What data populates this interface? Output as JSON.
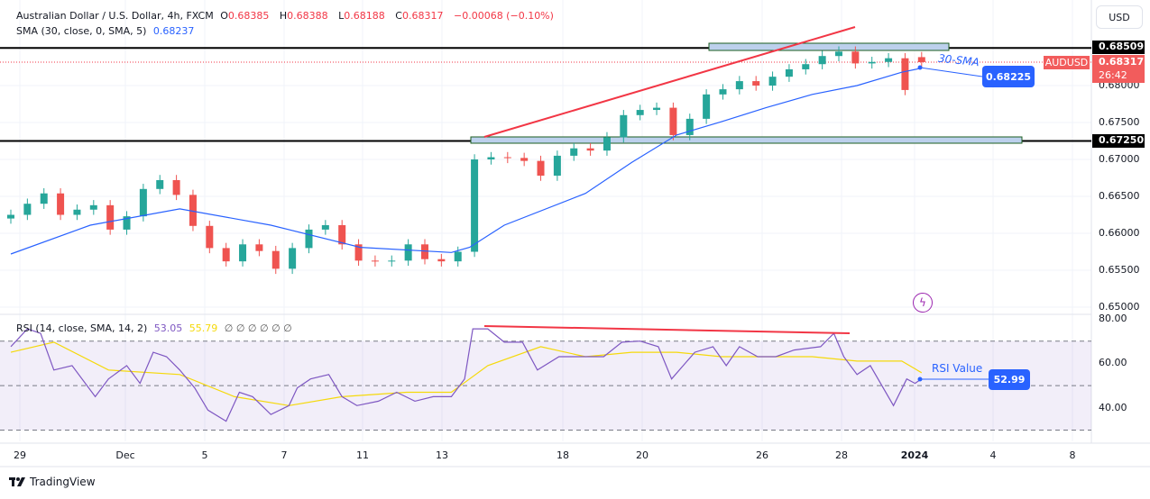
{
  "header": {
    "title": "Australian Dollar / U.S. Dollar, 4h, FXCM",
    "o_label": "O",
    "o": "0.68385",
    "h_label": "H",
    "h": "0.68388",
    "l_label": "L",
    "l": "0.68188",
    "c_label": "C",
    "c": "0.68317",
    "change": "−0.00068 (−0.10%)"
  },
  "sma_legend": {
    "label": "SMA (30, close, 0, SMA, 5)",
    "value": "0.68237"
  },
  "rsi_legend": {
    "label": "RSI (14, close, SMA, 14, 2)",
    "rsi": "53.05",
    "ma": "55.79",
    "extra": "∅ ∅ ∅ ∅ ∅ ∅"
  },
  "currency_button": "USD",
  "price_axis": {
    "ticks": [
      "0.68000",
      "0.67500",
      "0.67000",
      "0.66500",
      "0.66000",
      "0.65500",
      "0.65000"
    ],
    "tick_values": [
      0.68,
      0.675,
      0.67,
      0.665,
      0.66,
      0.655,
      0.65
    ],
    "levels": [
      {
        "label": "0.68509",
        "value": 0.68509
      },
      {
        "label": "0.67250",
        "value": 0.6725
      }
    ],
    "last": {
      "symbol": "AUDUSD",
      "price": "0.68317",
      "value": 0.68317,
      "countdown": "26:42"
    }
  },
  "rsi_axis": {
    "ticks": [
      "80.00",
      "60.00",
      "40.00"
    ],
    "tick_values": [
      80,
      60,
      40
    ]
  },
  "time_axis": [
    "29",
    "Dec",
    "5",
    "7",
    "11",
    "13",
    "18",
    "20",
    "26",
    "28",
    "2024",
    "4",
    "8"
  ],
  "annotations": {
    "sma_text": "30-SMA",
    "sma_badge": "0.68225",
    "rsi_text": "RSI Value",
    "rsi_badge": "52.99"
  },
  "brand": "TradingView",
  "colors": {
    "up": "#26a69a",
    "down": "#ef5350",
    "sma": "#2962ff",
    "rsi": "#7e57c2",
    "rsi_ma": "#f5d90a",
    "trend": "#f23645"
  },
  "chart_data": {
    "type": "candlestick",
    "interval": "4h",
    "last_open": 0.68385,
    "closes": [
      0.6625,
      0.664,
      0.6654,
      0.6625,
      0.6632,
      0.6638,
      0.6605,
      0.6623,
      0.666,
      0.6672,
      0.6652,
      0.661,
      0.658,
      0.6562,
      0.6585,
      0.6576,
      0.6552,
      0.658,
      0.6605,
      0.6611,
      0.6585,
      0.6563,
      0.6562,
      0.6563,
      0.6585,
      0.6565,
      0.6562,
      0.6575,
      0.67,
      0.6703,
      0.6702,
      0.6698,
      0.6678,
      0.6705,
      0.6715,
      0.6712,
      0.673,
      0.676,
      0.6767,
      0.677,
      0.6733,
      0.6755,
      0.6788,
      0.6795,
      0.6806,
      0.68,
      0.6812,
      0.6822,
      0.6829,
      0.684,
      0.6846,
      0.683,
      0.6832,
      0.6837,
      0.6794,
      0.68317
    ],
    "sma": [
      [
        0,
        0.6572
      ],
      [
        4.8,
        0.6611
      ],
      [
        10.2,
        0.6633
      ],
      [
        15.7,
        0.6611
      ],
      [
        21.1,
        0.6581
      ],
      [
        26.6,
        0.6574
      ],
      [
        27.7,
        0.6581
      ],
      [
        29.8,
        0.6611
      ],
      [
        34.7,
        0.6654
      ],
      [
        37.5,
        0.6696
      ],
      [
        40.2,
        0.6733
      ],
      [
        42.9,
        0.6751
      ],
      [
        45.6,
        0.677
      ],
      [
        48.4,
        0.6788
      ],
      [
        51.1,
        0.68
      ],
      [
        53.8,
        0.6818
      ],
      [
        55,
        0.68237
      ]
    ],
    "rsi": [
      [
        0,
        67.5
      ],
      [
        1,
        75.5
      ],
      [
        1.8,
        73.5
      ],
      [
        2.6,
        57
      ],
      [
        3.7,
        59
      ],
      [
        5.1,
        45
      ],
      [
        5.9,
        53
      ],
      [
        7,
        59
      ],
      [
        7.8,
        51
      ],
      [
        8.6,
        65
      ],
      [
        9.4,
        63
      ],
      [
        10.2,
        57
      ],
      [
        11.1,
        49
      ],
      [
        11.9,
        39
      ],
      [
        13,
        34
      ],
      [
        13.8,
        47
      ],
      [
        14.6,
        45
      ],
      [
        15.7,
        37
      ],
      [
        16.8,
        41
      ],
      [
        17.3,
        49
      ],
      [
        18.1,
        53
      ],
      [
        19.2,
        55
      ],
      [
        20,
        45
      ],
      [
        20.9,
        41
      ],
      [
        22.2,
        43
      ],
      [
        23.3,
        47
      ],
      [
        24.4,
        43
      ],
      [
        25.5,
        45
      ],
      [
        26.6,
        45
      ],
      [
        27.4,
        53
      ],
      [
        27.9,
        75.5
      ],
      [
        28.8,
        75.5
      ],
      [
        29.8,
        69.5
      ],
      [
        30.9,
        69.5
      ],
      [
        31.8,
        57
      ],
      [
        33.1,
        63
      ],
      [
        34.7,
        63
      ],
      [
        35.8,
        63
      ],
      [
        36.9,
        69.5
      ],
      [
        38,
        70
      ],
      [
        39.1,
        67.5
      ],
      [
        39.9,
        53
      ],
      [
        41.3,
        65
      ],
      [
        42.4,
        67.5
      ],
      [
        43.2,
        59
      ],
      [
        44,
        67.5
      ],
      [
        45.1,
        63
      ],
      [
        46.2,
        63
      ],
      [
        47.3,
        66
      ],
      [
        48.9,
        67.5
      ],
      [
        49.7,
        73.5
      ],
      [
        50.3,
        63
      ],
      [
        51.1,
        55
      ],
      [
        51.9,
        59
      ],
      [
        53.3,
        41
      ],
      [
        54.1,
        53
      ],
      [
        54.6,
        51
      ],
      [
        55,
        53.05
      ]
    ],
    "rsi_ma": [
      [
        0,
        65
      ],
      [
        2.6,
        69.5
      ],
      [
        5.9,
        57
      ],
      [
        10.2,
        55
      ],
      [
        13.5,
        45
      ],
      [
        16.8,
        41
      ],
      [
        20,
        45
      ],
      [
        23.9,
        47
      ],
      [
        26.6,
        47
      ],
      [
        28.8,
        59
      ],
      [
        32,
        67.5
      ],
      [
        34.7,
        63
      ],
      [
        37.5,
        65
      ],
      [
        40.2,
        65
      ],
      [
        42.9,
        63
      ],
      [
        45.6,
        63
      ],
      [
        48.4,
        63
      ],
      [
        51.1,
        61
      ],
      [
        53.8,
        61
      ],
      [
        55,
        55.79
      ]
    ],
    "rsi_levels": [
      70,
      50,
      30
    ]
  }
}
